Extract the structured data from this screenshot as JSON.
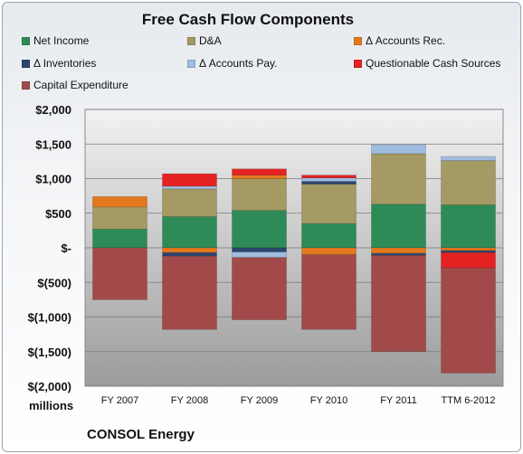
{
  "chart_data": {
    "type": "bar",
    "stacked": true,
    "title": "Free Cash Flow Components",
    "unit_label": "millions",
    "company": "CONSOL Energy",
    "categories": [
      "FY 2007",
      "FY 2008",
      "FY 2009",
      "FY 2010",
      "FY 2011",
      "TTM 6-2012"
    ],
    "y_ticks": [
      "$2,000",
      "$1,500",
      "$1,000",
      "$500",
      "$-",
      "$(500)",
      "$(1,000)",
      "$(1,500)",
      "$(2,000)"
    ],
    "ylim": [
      -2000,
      2000
    ],
    "grid": true,
    "legend_position": "top",
    "series": [
      {
        "name": "Net Income",
        "color": "#2e8b57",
        "values": [
          270,
          450,
          540,
          350,
          630,
          620
        ]
      },
      {
        "name": "D&A",
        "color": "#a59a64",
        "values": [
          320,
          400,
          460,
          570,
          730,
          640
        ]
      },
      {
        "name": "Δ Accounts Rec.",
        "color": "#e4781e",
        "values": [
          150,
          -70,
          50,
          -100,
          -80,
          -40
        ]
      },
      {
        "name": "Δ Inventories",
        "color": "#2c4770",
        "values": [
          0,
          -50,
          -60,
          40,
          -30,
          -30
        ]
      },
      {
        "name": "Δ Accounts Pay.",
        "color": "#9fbde0",
        "values": [
          0,
          40,
          -80,
          50,
          130,
          60
        ]
      },
      {
        "name": "Questionable Cash Sources",
        "color": "#e52222",
        "values": [
          0,
          180,
          90,
          40,
          0,
          -220
        ]
      },
      {
        "name": "Capital Expenditure",
        "color": "#a24a4a",
        "values": [
          -750,
          -1060,
          -900,
          -1080,
          -1390,
          -1520
        ]
      }
    ]
  }
}
